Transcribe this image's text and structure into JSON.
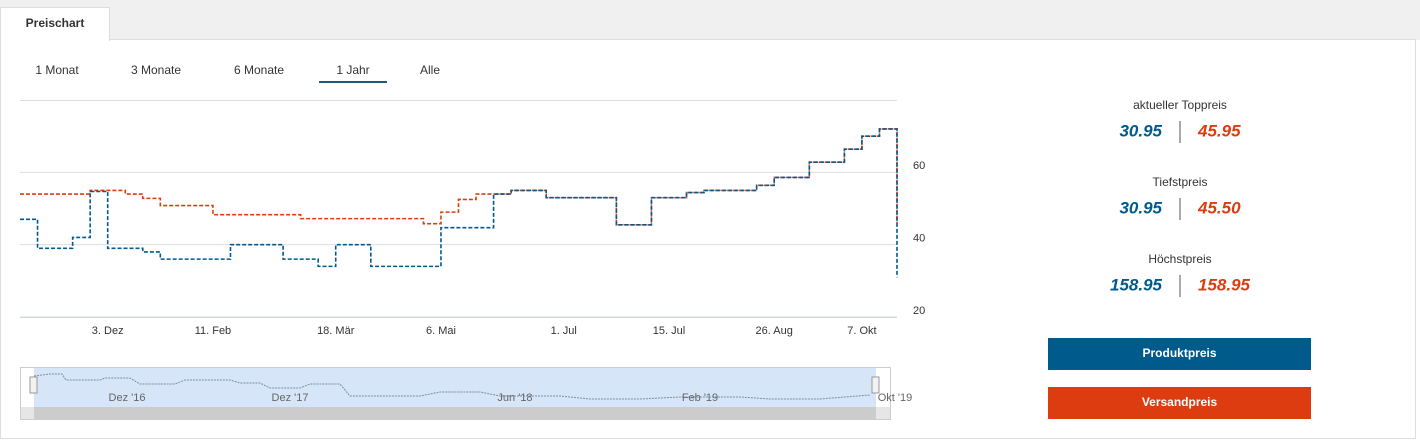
{
  "tabs": [
    "Preischart"
  ],
  "ranges": [
    "1 Monat",
    "3 Monate",
    "6 Monate",
    "1 Jahr",
    "Alle"
  ],
  "navigator": {
    "labels": [
      "Dez '16",
      "Dez '17",
      "Jun '18",
      "Feb '19",
      "Okt '19"
    ]
  },
  "stats": [
    {
      "label": "aktueller Toppreis",
      "values": [
        "30.95",
        "45.95"
      ]
    },
    {
      "label": "Tiefstpreis",
      "values": [
        "30.95",
        "45.50"
      ]
    },
    {
      "label": "Höchstpreis",
      "values": [
        "158.95",
        "158.95"
      ]
    }
  ],
  "chart_data": {
    "type": "step-line",
    "categories": [
      null,
      null,
      null,
      null,
      null,
      "3. Dez",
      null,
      null,
      null,
      null,
      null,
      "11. Feb",
      null,
      null,
      null,
      null,
      null,
      null,
      "18. Mär",
      null,
      null,
      null,
      null,
      null,
      "6. Mai",
      null,
      null,
      null,
      null,
      null,
      null,
      "1. Jul",
      null,
      null,
      null,
      null,
      null,
      "15. Jul",
      null,
      null,
      null,
      null,
      null,
      "26. Aug",
      null,
      null,
      null,
      null,
      "7. Okt",
      null,
      null
    ],
    "series": [
      {
        "name": "Produktpreis",
        "color": "#005a8c",
        "values": [
          47,
          39,
          39,
          42,
          54.7,
          39,
          39,
          38,
          36,
          36,
          36,
          36,
          40,
          40,
          40,
          36,
          36,
          34,
          40,
          40,
          34,
          34,
          34,
          34,
          44.7,
          44.7,
          44.7,
          54,
          55,
          55,
          53,
          53,
          53,
          53,
          45.5,
          45.5,
          53,
          53,
          54.4,
          55,
          55,
          55,
          56.4,
          58.6,
          58.6,
          62.8,
          62.8,
          66.4,
          70,
          72,
          30.95
        ]
      },
      {
        "name": "Versandpreis",
        "color": "#dd3c10",
        "values": [
          54,
          54,
          54,
          54,
          55,
          55,
          54,
          52.8,
          50.8,
          50.8,
          50.8,
          48.3,
          48.3,
          48.3,
          48.3,
          48.3,
          47.2,
          47.2,
          47.2,
          47.2,
          47.2,
          47.2,
          47.2,
          45.8,
          49,
          52.5,
          54,
          54,
          55,
          55,
          53,
          53,
          53,
          53,
          45.5,
          45.5,
          53,
          53,
          54.4,
          55,
          55,
          55,
          56.4,
          58.6,
          58.6,
          62.8,
          62.8,
          66.4,
          70,
          72,
          45.95
        ]
      }
    ],
    "ylim": [
      20,
      80
    ],
    "yticks": [
      20,
      40,
      60
    ],
    "grid": true
  }
}
